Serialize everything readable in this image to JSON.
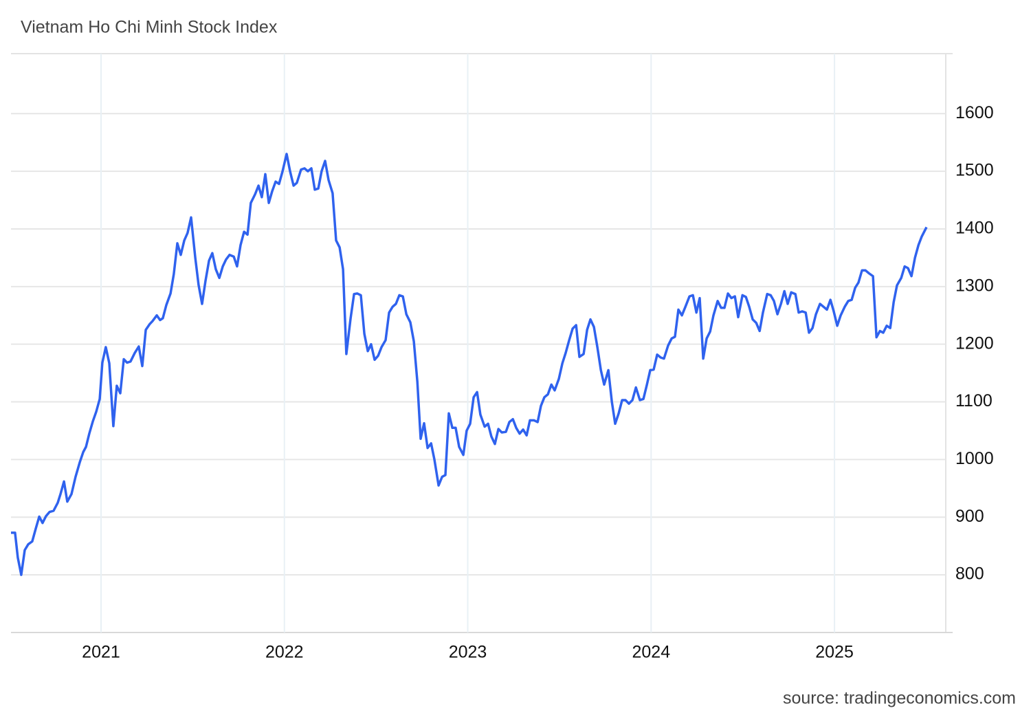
{
  "chart_data": {
    "type": "line",
    "title": "Vietnam Ho Chi Minh Stock Index",
    "source": "source: tradingeconomics.com",
    "color": "#2f62ee",
    "grid": true,
    "xlim": [
      2020.509,
      2025.607
    ],
    "xticks": [
      2021,
      2022,
      2023,
      2024,
      2025
    ],
    "ylim": [
      700,
      1704
    ],
    "yticks": [
      800,
      900,
      1000,
      1100,
      1200,
      1300,
      1400,
      1500,
      1600
    ],
    "x": [
      2020.509,
      2020.531,
      2020.546,
      2020.565,
      2020.584,
      2020.603,
      2020.625,
      2020.644,
      2020.663,
      2020.681,
      2020.7,
      2020.719,
      2020.741,
      2020.764,
      2020.779,
      2020.798,
      2020.816,
      2020.839,
      2020.861,
      2020.884,
      2020.903,
      2020.918,
      2020.936,
      2020.955,
      2020.974,
      2020.993,
      2021.007,
      2021.026,
      2021.045,
      2021.067,
      2021.086,
      2021.105,
      2021.124,
      2021.142,
      2021.161,
      2021.184,
      2021.206,
      2021.225,
      2021.244,
      2021.266,
      2021.281,
      2021.304,
      2021.322,
      2021.337,
      2021.356,
      2021.379,
      2021.397,
      2021.416,
      2021.435,
      2021.454,
      2021.472,
      2021.491,
      2021.514,
      2021.532,
      2021.551,
      2021.57,
      2021.589,
      2021.607,
      2021.626,
      2021.645,
      2021.664,
      2021.682,
      2021.701,
      2021.724,
      2021.742,
      2021.761,
      2021.78,
      2021.799,
      2021.817,
      2021.84,
      2021.859,
      2021.877,
      2021.896,
      2021.915,
      2021.933,
      2021.952,
      2021.971,
      2021.99,
      2022.012,
      2022.031,
      2022.05,
      2022.068,
      2022.091,
      2022.11,
      2022.128,
      2022.147,
      2022.166,
      2022.185,
      2022.203,
      2022.222,
      2022.241,
      2022.263,
      2022.282,
      2022.301,
      2022.32,
      2022.338,
      2022.361,
      2022.38,
      2022.398,
      2022.417,
      2022.436,
      2022.455,
      2022.473,
      2022.492,
      2022.511,
      2022.53,
      2022.552,
      2022.571,
      2022.59,
      2022.608,
      2022.627,
      2022.646,
      2022.665,
      2022.687,
      2022.706,
      2022.725,
      2022.743,
      2022.762,
      2022.781,
      2022.8,
      2022.818,
      2022.841,
      2022.86,
      2022.878,
      2022.897,
      2022.916,
      2022.934,
      2022.953,
      2022.976,
      2022.994,
      2023.013,
      2023.032,
      2023.051,
      2023.069,
      2023.092,
      2023.111,
      2023.129,
      2023.148,
      2023.167,
      2023.186,
      2023.208,
      2023.227,
      2023.246,
      2023.264,
      2023.283,
      2023.302,
      2023.321,
      2023.339,
      2023.362,
      2023.381,
      2023.399,
      2023.418,
      2023.437,
      2023.456,
      2023.474,
      2023.497,
      2023.516,
      2023.534,
      2023.553,
      2023.572,
      2023.591,
      2023.609,
      2023.632,
      2023.651,
      2023.669,
      2023.688,
      2023.707,
      2023.726,
      2023.744,
      2023.767,
      2023.786,
      2023.804,
      2023.823,
      2023.842,
      2023.86,
      2023.879,
      2023.898,
      2023.917,
      2023.939,
      2023.958,
      2023.977,
      2023.995,
      2024.014,
      2024.033,
      2024.052,
      2024.07,
      2024.093,
      2024.112,
      2024.13,
      2024.149,
      2024.168,
      2024.187,
      2024.209,
      2024.228,
      2024.247,
      2024.265,
      2024.284,
      2024.303,
      2024.322,
      2024.34,
      2024.363,
      2024.382,
      2024.4,
      2024.419,
      2024.438,
      2024.457,
      2024.475,
      2024.498,
      2024.517,
      2024.535,
      2024.554,
      2024.573,
      2024.592,
      2024.61,
      2024.633,
      2024.652,
      2024.67,
      2024.689,
      2024.708,
      2024.727,
      2024.745,
      2024.764,
      2024.787,
      2024.805,
      2024.824,
      2024.843,
      2024.861,
      2024.88,
      2024.899,
      2024.921,
      2024.94,
      2024.959,
      2024.978,
      2024.996,
      2025.015,
      2025.034,
      2025.056,
      2025.075,
      2025.094,
      2025.113,
      2025.131,
      2025.15,
      2025.169,
      2025.188,
      2025.21,
      2025.229,
      2025.248,
      2025.266,
      2025.285,
      2025.304,
      2025.323,
      2025.341,
      2025.364,
      2025.383,
      2025.401,
      2025.42,
      2025.439,
      2025.458,
      2025.476,
      2025.502
    ],
    "values": [
      873,
      873,
      830,
      800,
      843,
      853,
      858,
      880,
      901,
      890,
      902,
      909,
      911,
      925,
      940,
      962,
      927,
      940,
      970,
      995,
      1013,
      1022,
      1045,
      1066,
      1083,
      1105,
      1168,
      1195,
      1167,
      1058,
      1128,
      1115,
      1174,
      1168,
      1170,
      1185,
      1196,
      1162,
      1225,
      1235,
      1240,
      1250,
      1242,
      1245,
      1268,
      1288,
      1322,
      1375,
      1355,
      1380,
      1393,
      1420,
      1350,
      1303,
      1270,
      1310,
      1345,
      1358,
      1330,
      1315,
      1335,
      1347,
      1355,
      1352,
      1335,
      1372,
      1395,
      1390,
      1445,
      1460,
      1475,
      1455,
      1495,
      1445,
      1465,
      1482,
      1478,
      1500,
      1530,
      1500,
      1475,
      1480,
      1503,
      1505,
      1500,
      1505,
      1468,
      1470,
      1500,
      1518,
      1485,
      1462,
      1380,
      1368,
      1330,
      1183,
      1245,
      1287,
      1288,
      1285,
      1218,
      1188,
      1200,
      1173,
      1180,
      1195,
      1207,
      1255,
      1265,
      1270,
      1285,
      1283,
      1252,
      1238,
      1205,
      1135,
      1036,
      1063,
      1020,
      1028,
      1000,
      955,
      970,
      973,
      1080,
      1055,
      1055,
      1022,
      1008,
      1050,
      1062,
      1108,
      1117,
      1078,
      1057,
      1062,
      1040,
      1027,
      1053,
      1047,
      1048,
      1065,
      1070,
      1055,
      1045,
      1052,
      1042,
      1068,
      1068,
      1065,
      1093,
      1108,
      1113,
      1130,
      1120,
      1140,
      1167,
      1185,
      1207,
      1227,
      1233,
      1178,
      1183,
      1225,
      1243,
      1230,
      1195,
      1155,
      1130,
      1155,
      1100,
      1062,
      1080,
      1103,
      1103,
      1097,
      1103,
      1125,
      1103,
      1105,
      1130,
      1155,
      1156,
      1182,
      1177,
      1175,
      1198,
      1210,
      1213,
      1260,
      1250,
      1265,
      1283,
      1285,
      1255,
      1280,
      1175,
      1210,
      1222,
      1250,
      1275,
      1263,
      1263,
      1288,
      1280,
      1283,
      1247,
      1285,
      1282,
      1265,
      1243,
      1237,
      1223,
      1255,
      1287,
      1285,
      1275,
      1252,
      1270,
      1292,
      1270,
      1290,
      1287,
      1255,
      1257,
      1255,
      1220,
      1228,
      1252,
      1270,
      1265,
      1260,
      1277,
      1257,
      1232,
      1250,
      1265,
      1275,
      1277,
      1298,
      1307,
      1328,
      1328,
      1323,
      1318,
      1212,
      1223,
      1220,
      1232,
      1228,
      1273,
      1302,
      1315,
      1335,
      1332,
      1318,
      1350,
      1372,
      1387,
      1403
    ]
  }
}
